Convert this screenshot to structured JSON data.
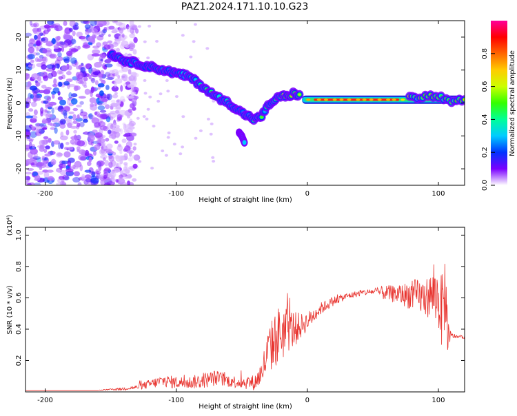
{
  "title": "PAZ1.2024.171.10.10.G23",
  "colorbar": {
    "label": "Normalized spectral amplitude",
    "ticks": [
      "0.0",
      "0.2",
      "0.4",
      "0.6",
      "0.8"
    ],
    "tick_values": [
      0.0,
      0.2,
      0.4,
      0.6,
      0.8
    ],
    "range": [
      0,
      1
    ],
    "gradient": [
      "#ffffff",
      "#7a00ff",
      "#0033ff",
      "#00ccff",
      "#00ff99",
      "#33ff00",
      "#ccff00",
      "#ffcc00",
      "#ff6600",
      "#ff0000",
      "#ff0099"
    ]
  },
  "chart_data": [
    {
      "type": "heatmap",
      "xlabel": "Height of straight line (km)",
      "ylabel": "Frequency (Hz)",
      "xlim": [
        -215,
        120
      ],
      "ylim": [
        -25,
        25
      ],
      "xticks": [
        -200,
        -100,
        0,
        100
      ],
      "xtick_labels": [
        "-200",
        "-100",
        "0",
        "100"
      ],
      "yticks": [
        -20,
        -10,
        0,
        10,
        20
      ],
      "ytick_labels": [
        "-20",
        "-10",
        "0",
        "10",
        "20"
      ],
      "ridge": {
        "x": [
          -150,
          -140,
          -130,
          -120,
          -110,
          -100,
          -90,
          -80,
          -70,
          -60,
          -50,
          -45,
          -40,
          -35,
          -30,
          -25,
          -20,
          -15,
          -10,
          -5,
          0,
          20,
          40,
          60,
          80,
          90,
          100,
          105,
          110,
          115,
          120
        ],
        "y": [
          15,
          13,
          12,
          11,
          10,
          9,
          8,
          5,
          2,
          0,
          -3,
          -4,
          -5,
          -4,
          -1,
          1,
          2,
          2,
          3,
          2,
          1,
          1,
          1,
          1,
          1.5,
          2,
          2,
          1,
          0,
          1,
          0.5
        ]
      },
      "branch": {
        "x": [
          -52,
          -50,
          -48
        ],
        "y": [
          -9,
          -10,
          -12
        ]
      },
      "noise_region_x": [
        -215,
        -150
      ]
    },
    {
      "type": "line",
      "xlabel": "Height of straight line (km)",
      "ylabel": "SNR (10 * v/v)",
      "scale_label": "(x10⁴)",
      "xlim": [
        -215,
        120
      ],
      "ylim": [
        0,
        1.05
      ],
      "xticks": [
        -200,
        -100,
        0,
        100
      ],
      "xtick_labels": [
        "-200",
        "-100",
        "0",
        "100"
      ],
      "yticks": [
        0.2,
        0.4,
        0.6,
        0.8,
        1.0
      ],
      "ytick_labels": [
        "0.2",
        "0.4",
        "0.6",
        "0.8",
        "1.0"
      ],
      "series": [
        {
          "color": "#e8332e",
          "x": [
            -215,
            -200,
            -180,
            -160,
            -150,
            -140,
            -130,
            -120,
            -110,
            -100,
            -90,
            -80,
            -70,
            -60,
            -50,
            -40,
            -35,
            -30,
            -25,
            -20,
            -15,
            -10,
            -5,
            0,
            10,
            20,
            30,
            40,
            50,
            60,
            70,
            80,
            90,
            95,
            100,
            103,
            105,
            108,
            110,
            115,
            120
          ],
          "y": [
            0.01,
            0.01,
            0.01,
            0.01,
            0.015,
            0.02,
            0.03,
            0.05,
            0.07,
            0.06,
            0.06,
            0.07,
            0.09,
            0.07,
            0.06,
            0.06,
            0.12,
            0.25,
            0.33,
            0.38,
            0.4,
            0.4,
            0.42,
            0.45,
            0.53,
            0.58,
            0.61,
            0.63,
            0.64,
            0.63,
            0.62,
            0.62,
            0.6,
            0.62,
            0.6,
            0.5,
            0.65,
            0.3,
            0.36,
            0.35,
            0.35
          ],
          "jitter": [
            0,
            0,
            0,
            0,
            0.005,
            0.01,
            0.015,
            0.03,
            0.04,
            0.04,
            0.04,
            0.05,
            0.05,
            0.04,
            0.04,
            0.05,
            0.08,
            0.15,
            0.18,
            0.2,
            0.15,
            0.12,
            0.08,
            0.06,
            0.04,
            0.03,
            0.02,
            0.02,
            0.02,
            0.05,
            0.06,
            0.1,
            0.12,
            0.15,
            0.2,
            0.25,
            0.25,
            0.12,
            0.02,
            0.01,
            0.01
          ]
        }
      ]
    }
  ]
}
